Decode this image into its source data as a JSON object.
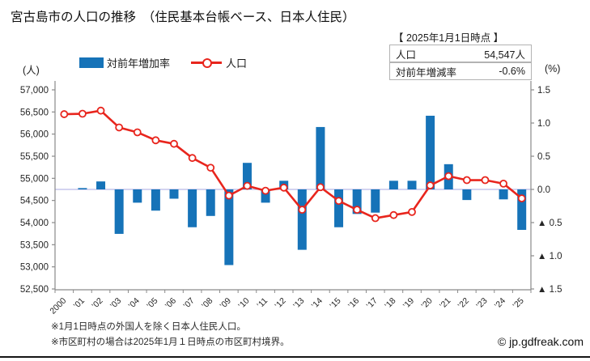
{
  "title": "宮古島市の人口の推移　（住民基本台帳ベース、日本人住民）",
  "stat_box": {
    "caption": "【 2025年1月1日時点 】",
    "rows": [
      {
        "label": "人口",
        "value": "54,547人"
      },
      {
        "label": "対前年増減率",
        "value": "-0.6%"
      }
    ]
  },
  "legend": {
    "bar_label": "対前年増加率",
    "line_label": "人口"
  },
  "axis_units": {
    "left": "(人)",
    "right": "(%)"
  },
  "notes": [
    "※1月1日時点の外国人を除く日本人住民人口。",
    "※市区町村の場合は2025年1月１日時点の市区町村境界。"
  ],
  "footer": {
    "credit": "© jp.gdfreak.com"
  },
  "colors": {
    "bar": "#1673b8",
    "line": "#e8251d",
    "marker_fill": "#ffffff",
    "zero_line": "#b9b9e8",
    "axis": "#8a8a8a",
    "tick_text": "#262626"
  },
  "chart_data": {
    "type": "combo-bar-line",
    "title": "宮古島市の人口の推移（住民基本台帳ベース、日本人住民）",
    "categories": [
      "2000",
      "’01",
      "’02",
      "’03",
      "’04",
      "’05",
      "’06",
      "’07",
      "’08",
      "’09",
      "’10",
      "’11",
      "’12",
      "’13",
      "’14",
      "’15",
      "’16",
      "’17",
      "’18",
      "’19",
      "’20",
      "’21",
      "’22",
      "’23",
      "’24",
      "’25"
    ],
    "series": [
      {
        "name": "人口",
        "type": "line",
        "axis": "left",
        "values": [
          56450,
          56460,
          56530,
          56150,
          56040,
          55860,
          55780,
          55460,
          55240,
          54610,
          54830,
          54720,
          54790,
          54290,
          54800,
          54490,
          54290,
          54100,
          54170,
          54240,
          54840,
          55050,
          54960,
          54960,
          54880,
          54547
        ]
      },
      {
        "name": "対前年増加率",
        "type": "bar",
        "axis": "right",
        "values": [
          null,
          0.02,
          0.12,
          -0.67,
          -0.2,
          -0.32,
          -0.14,
          -0.57,
          -0.4,
          -1.14,
          0.4,
          -0.2,
          0.13,
          -0.91,
          0.94,
          -0.57,
          -0.37,
          -0.35,
          0.13,
          0.13,
          1.11,
          0.38,
          -0.16,
          0.0,
          -0.15,
          -0.61
        ]
      }
    ],
    "left_axis": {
      "label": "(人)",
      "min": 52500,
      "max": 57000,
      "tick_step": 500
    },
    "right_axis": {
      "label": "(%)",
      "min": -1.5,
      "max": 1.5,
      "tick_step": 0.5,
      "negative_prefix": "▲ "
    },
    "legend_position": "top",
    "grid": "zero-line-only"
  }
}
